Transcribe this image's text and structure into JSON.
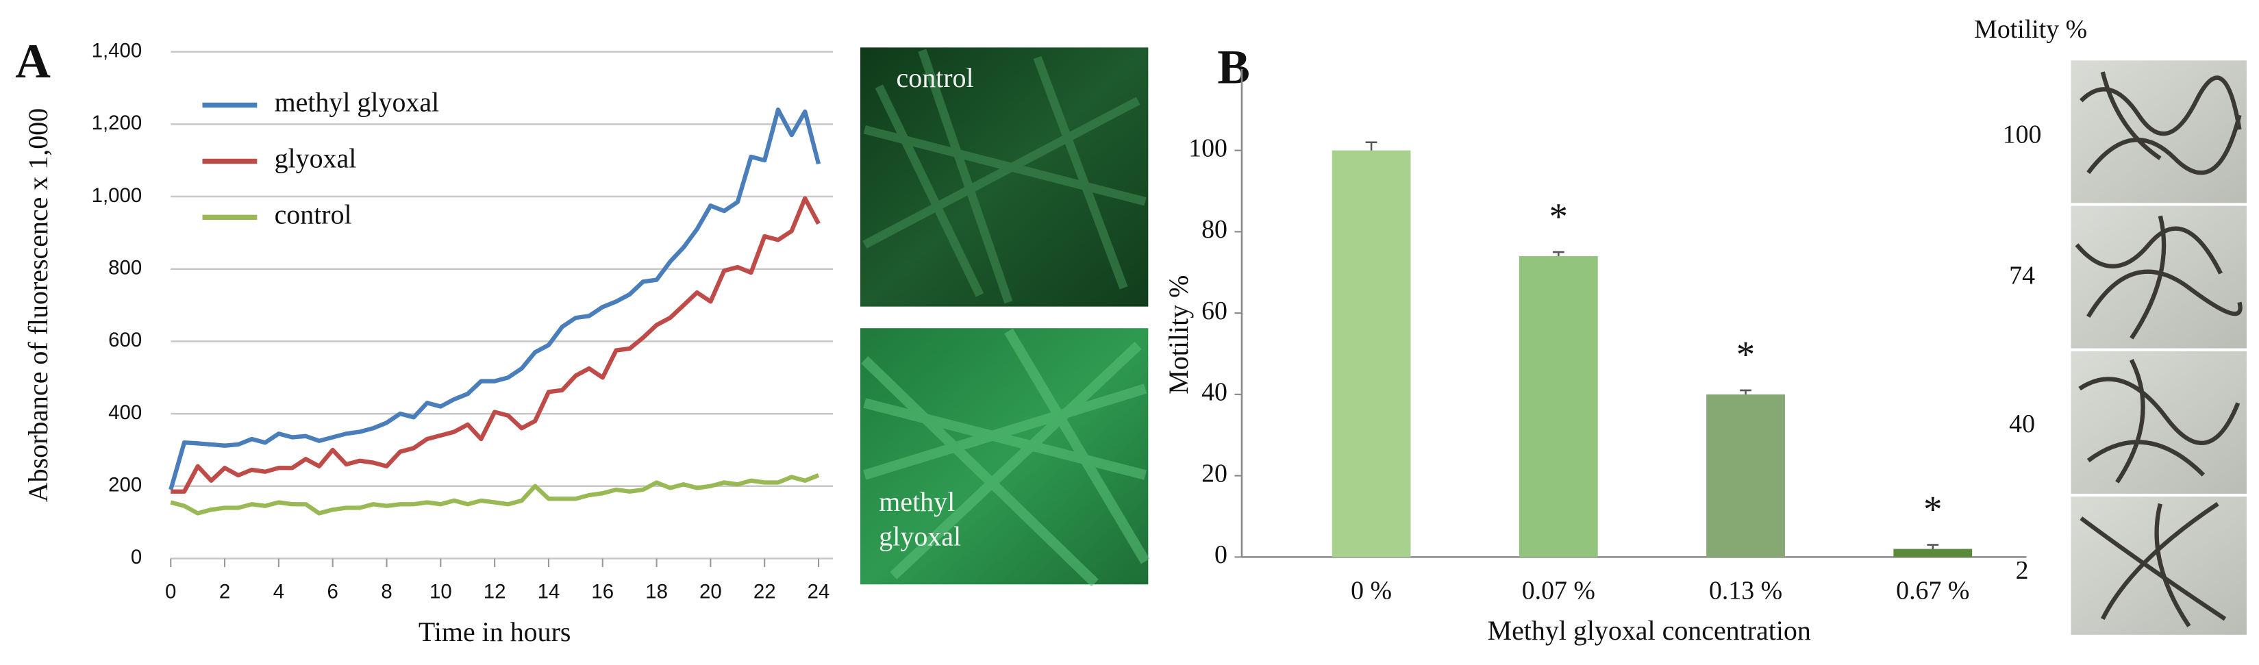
{
  "chart_data": [
    {
      "type": "line",
      "y_label": "Absorbance of fluorescence x 1,000",
      "x_label": "Time in hours",
      "x": [
        0,
        0.5,
        1,
        1.5,
        2,
        2.5,
        3,
        3.5,
        4,
        4.5,
        5,
        5.5,
        6,
        6.5,
        7,
        7.5,
        8,
        8.5,
        9,
        9.5,
        10,
        10.5,
        11,
        11.5,
        12,
        12.5,
        13,
        13.5,
        14,
        14.5,
        15,
        15.5,
        16,
        16.5,
        17,
        17.5,
        18,
        18.5,
        19,
        19.5,
        20,
        20.5,
        21,
        21.5,
        22,
        22.5,
        23,
        23.5,
        24
      ],
      "series": [
        {
          "name": "methyl glyoxal",
          "color": "#4a7ebb",
          "values": [
            190,
            320,
            318,
            315,
            312,
            315,
            330,
            320,
            345,
            335,
            338,
            325,
            335,
            345,
            350,
            360,
            375,
            400,
            390,
            430,
            420,
            440,
            455,
            490,
            490,
            500,
            525,
            570,
            590,
            640,
            665,
            670,
            695,
            710,
            730,
            765,
            770,
            820,
            860,
            910,
            975,
            960,
            985,
            1110,
            1100,
            1240,
            1170,
            1235,
            1090
          ]
        },
        {
          "name": "glyoxal",
          "color": "#be4b48",
          "values": [
            185,
            185,
            255,
            215,
            250,
            230,
            245,
            240,
            250,
            250,
            275,
            255,
            300,
            260,
            270,
            265,
            255,
            295,
            305,
            330,
            340,
            350,
            370,
            330,
            405,
            395,
            360,
            380,
            460,
            465,
            505,
            525,
            500,
            575,
            580,
            610,
            645,
            665,
            700,
            735,
            710,
            795,
            805,
            790,
            890,
            880,
            905,
            995,
            925
          ]
        },
        {
          "name": "control",
          "color": "#98b954",
          "values": [
            155,
            145,
            125,
            135,
            140,
            140,
            150,
            145,
            155,
            150,
            150,
            125,
            135,
            140,
            140,
            150,
            145,
            150,
            150,
            155,
            150,
            160,
            150,
            160,
            155,
            150,
            160,
            200,
            165,
            165,
            165,
            175,
            180,
            190,
            185,
            190,
            210,
            195,
            205,
            195,
            200,
            210,
            205,
            215,
            210,
            210,
            225,
            215,
            230
          ]
        }
      ],
      "xlim": [
        0,
        24
      ],
      "xticks": [
        0,
        2,
        4,
        6,
        8,
        10,
        12,
        14,
        16,
        18,
        20,
        22,
        24
      ],
      "ylim": [
        0,
        1400
      ],
      "yticks": [
        0,
        200,
        400,
        600,
        800,
        {
          "value": 1000,
          "label": "1,000"
        },
        {
          "value": 1200,
          "label": "1,200"
        },
        {
          "value": 1400,
          "label": "1,400"
        }
      ],
      "grid": true,
      "legend": "upper left"
    },
    {
      "type": "bar",
      "y_label": "Motility %",
      "x_label": "Methyl glyoxal concentration",
      "categories": [
        "0 %",
        "0.07 %",
        "0.13 %",
        "0.67 %"
      ],
      "values": [
        100,
        74,
        40,
        2
      ],
      "errors": [
        2,
        1,
        1,
        1
      ],
      "colors": [
        "#a9d18e",
        "#93c47d",
        "#86a873",
        "#5a8a3a"
      ],
      "annotations": [
        null,
        "*",
        "*",
        "*"
      ],
      "ylim": [
        0,
        120
      ],
      "yticks": [
        0,
        20,
        40,
        60,
        80,
        100
      ],
      "grid": false
    }
  ],
  "figure": {
    "panel_labels": [
      "A",
      "B"
    ],
    "micrograph_labels": [
      "control",
      "methyl glyoxal"
    ],
    "strip_title": "Motility %",
    "strip_labels": [
      "100",
      "74",
      "40",
      "2"
    ]
  }
}
